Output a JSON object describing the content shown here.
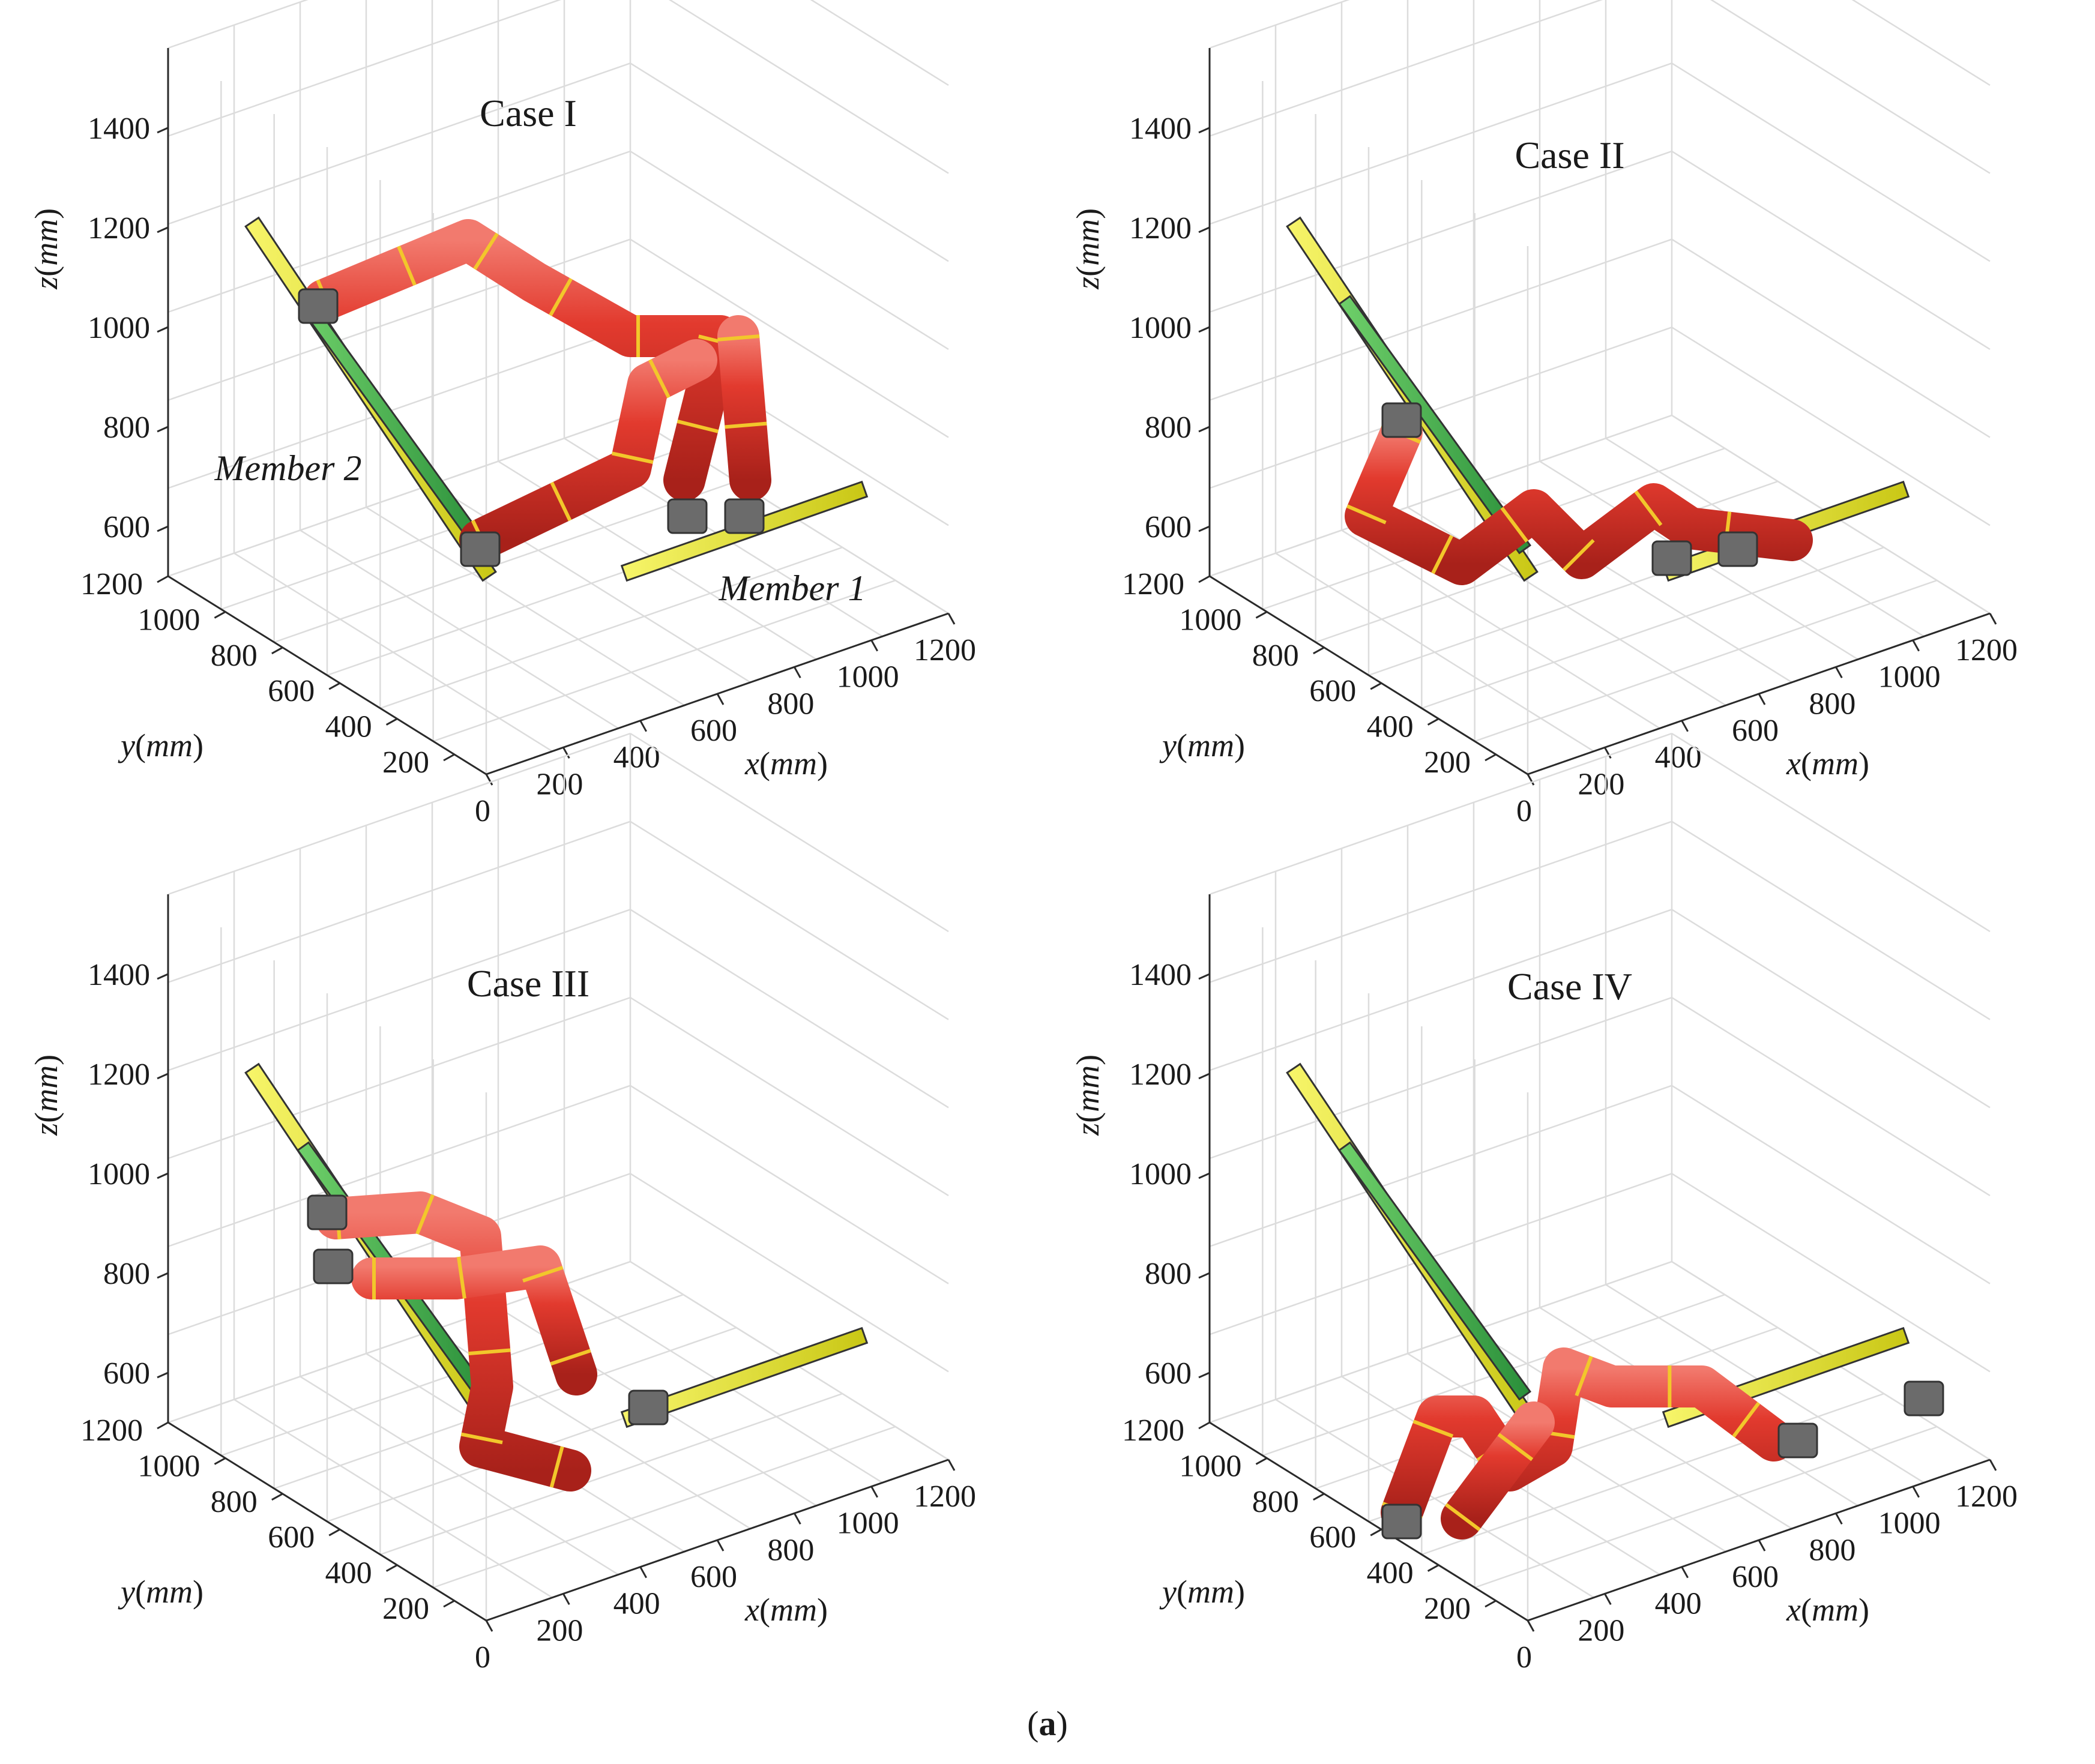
{
  "figure": {
    "caption_label": "a",
    "panels": [
      {
        "title": "Case I",
        "z_ticks": [
          "600",
          "800",
          "1000",
          "1200",
          "1400"
        ],
        "y_ticks": [
          "200",
          "400",
          "600",
          "800",
          "1000",
          "1200"
        ],
        "x_ticks": [
          "0",
          "200",
          "400",
          "600",
          "800",
          "1000",
          "1200"
        ],
        "axis_labels": {
          "x_var": "x",
          "y_var": "y",
          "z_var": "z",
          "unit": "mm"
        },
        "annotations": [
          "Member 2",
          "Member 1"
        ]
      },
      {
        "title": "Case II",
        "z_ticks": [
          "600",
          "800",
          "1000",
          "1200",
          "1400"
        ],
        "y_ticks": [
          "200",
          "400",
          "600",
          "800",
          "1000",
          "1200"
        ],
        "x_ticks": [
          "0",
          "200",
          "400",
          "600",
          "800",
          "1000",
          "1200"
        ],
        "axis_labels": {
          "x_var": "x",
          "y_var": "y",
          "z_var": "z",
          "unit": "mm"
        }
      },
      {
        "title": "Case III",
        "z_ticks": [
          "600",
          "800",
          "1000",
          "1200",
          "1400"
        ],
        "y_ticks": [
          "200",
          "400",
          "600",
          "800",
          "1000",
          "1200"
        ],
        "x_ticks": [
          "0",
          "200",
          "400",
          "600",
          "800",
          "1000",
          "1200"
        ],
        "axis_labels": {
          "x_var": "x",
          "y_var": "y",
          "z_var": "z",
          "unit": "mm"
        }
      },
      {
        "title": "Case IV",
        "z_ticks": [
          "600",
          "800",
          "1000",
          "1200",
          "1400"
        ],
        "y_ticks": [
          "200",
          "400",
          "600",
          "800",
          "1000",
          "1200"
        ],
        "x_ticks": [
          "0",
          "200",
          "400",
          "600",
          "800",
          "1000",
          "1200"
        ],
        "axis_labels": {
          "x_var": "x",
          "y_var": "y",
          "z_var": "z",
          "unit": "mm"
        }
      }
    ],
    "colors": {
      "robot_body": "#e23a2e",
      "robot_ring": "#f2c72b",
      "joint_gray": "#6b6b6b",
      "member_yellow": "#e8e62a",
      "member_green": "#3bb04a",
      "grid": "#dcdcdc",
      "axis": "#2a2a2a"
    }
  }
}
